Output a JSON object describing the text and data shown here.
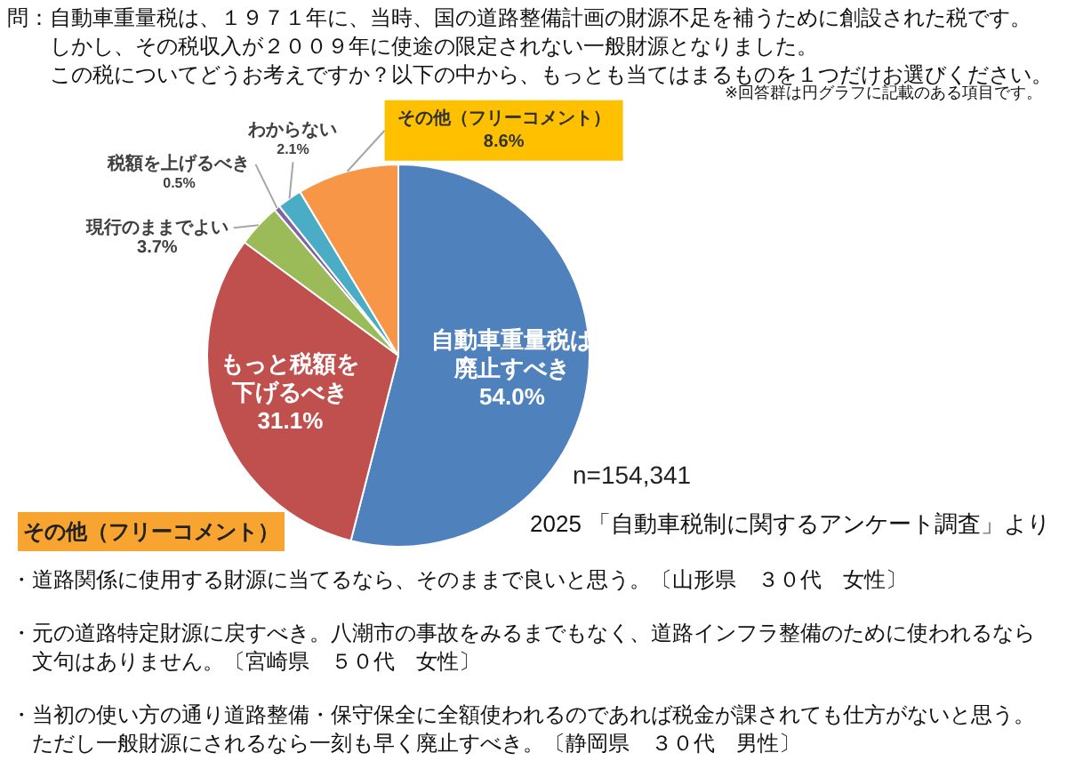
{
  "chart_data": {
    "type": "pie",
    "title": "問：自動車重量税は、１９７１年に、当時、国の道路整備計画の財源不足を補うために創設された税です。しかし、その税収入が２００９年に使途の限定されない一般財源となりました。この税についてどうお考えですか？以下の中から、もっとも当てはまるものを１つだけお選びください。",
    "subtitle": "※回答群は円グラフに記載のある項目です。",
    "categories": [
      "自動車重量税は廃止すべき",
      "もっと税額を下げるべき",
      "現行のままでよい",
      "税額を上げるべき",
      "わからない",
      "その他（フリーコメント）"
    ],
    "values": [
      54.0,
      31.1,
      3.7,
      0.5,
      2.1,
      8.6
    ],
    "value_labels": [
      "54.0%",
      "31.1%",
      "3.7%",
      "0.5%",
      "2.1%",
      "8.6%"
    ],
    "colors": [
      "#4f81bd",
      "#c0504d",
      "#9bbb59",
      "#8064a2",
      "#4bacc6",
      "#f79646"
    ],
    "legend": false,
    "annotations": [
      "n=154,341",
      "2025 「自動車税制に関するアンケート調査」より",
      "その他（フリーコメント）",
      "・道路関係に使用する財源に当てるなら、そのままで良いと思う。〔山形県　３０代　女性〕",
      "・元の道路特定財源に戻すべき。八潮市の事故をみるまでもなく、道路インフラ整備のために使われるなら文句はありません。〔宮崎県　５０代　女性〕",
      "・当初の使い方の通り道路整備・保守保全に全額使われるのであれば税金が課されても仕方がないと思う。ただし一般財源にされるなら一刻も早く廃止すべき。〔静岡県　３０代　男性〕"
    ]
  }
}
